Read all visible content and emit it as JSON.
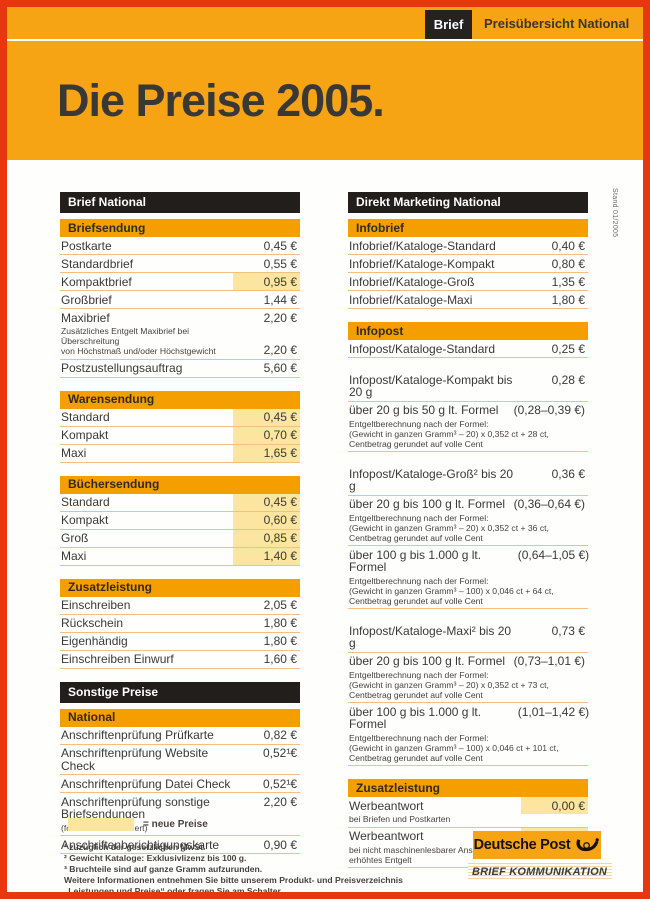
{
  "header": {
    "tab": "Brief",
    "subtitle": "Preisübersicht National",
    "title": "Die Preise 2005.",
    "stand_note": "Stand 01/2005"
  },
  "colors": {
    "frame_red": "#e8370e",
    "orange": "#f7a414",
    "section_band_orange": "#f59e00",
    "black_band": "#211e1b",
    "new_price_highlight": "#fce59e",
    "text_dark": "#3a3936",
    "row_separator": "#eec17e"
  },
  "columns": [
    {
      "sections": [
        {
          "type": "band",
          "label": "Brief National"
        },
        {
          "type": "table",
          "header": "Briefsendung",
          "rows": [
            {
              "label": "Postkarte",
              "price": "0,45 €"
            },
            {
              "label": "Standardbrief",
              "price": "0,55 €"
            },
            {
              "label": "Kompaktbrief",
              "price": "0,95 €",
              "highlight": true
            },
            {
              "label": "Großbrief",
              "price": "1,44 €"
            },
            {
              "label": "Maxibrief",
              "price": "2,20 €"
            },
            {
              "joined": true,
              "note_lines": [
                "Zusätzliches Entgelt Maxibrief bei Überschreitung",
                "von Höchstmaß und/oder Höchstgewicht"
              ],
              "price": "2,20 €"
            },
            {
              "label": "Postzustellungsauftrag",
              "price": "5,60 €"
            }
          ]
        },
        {
          "type": "table",
          "header": "Warensendung",
          "rows": [
            {
              "label": "Standard",
              "price": "0,45 €",
              "highlight": true
            },
            {
              "label": "Kompakt",
              "price": "0,70 €",
              "highlight": true
            },
            {
              "label": "Maxi",
              "price": "1,65 €",
              "highlight": true
            }
          ]
        },
        {
          "type": "table",
          "header": "Büchersendung",
          "rows": [
            {
              "label": "Standard",
              "price": "0,45 €",
              "highlight": true
            },
            {
              "label": "Kompakt",
              "price": "0,60 €",
              "highlight": true
            },
            {
              "label": "Groß",
              "price": "0,85 €",
              "highlight": true
            },
            {
              "label": "Maxi",
              "price": "1,40 €",
              "highlight": true
            }
          ]
        },
        {
          "type": "table",
          "header": "Zusatzleistung",
          "rows": [
            {
              "label": "Einschreiben",
              "price": "2,05 €"
            },
            {
              "label": "Rückschein",
              "price": "1,80 €"
            },
            {
              "label": "Eigenhändig",
              "price": "1,80 €"
            },
            {
              "label": "Einschreiben Einwurf",
              "price": "1,60 €"
            }
          ]
        },
        {
          "type": "band",
          "label": "Sonstige Preise"
        },
        {
          "type": "table",
          "header": "National",
          "rows": [
            {
              "label": "Anschriftenprüfung Prüfkarte",
              "price": "0,82 €"
            },
            {
              "label": "Anschriftenprüfung Website Check",
              "price": "0,52¹€"
            },
            {
              "label": "Anschriftenprüfung Datei Check",
              "price": "0,52¹€"
            },
            {
              "label": "Anschriftenprüfung sonstige Briefsendungen",
              "note_lines": [
                "(formlos/unstrukturiert)"
              ],
              "price": "2,20 €"
            },
            {
              "label": "Anschriftenberichtigungskarte",
              "price": "0,90 €"
            }
          ]
        }
      ]
    },
    {
      "sections": [
        {
          "type": "band",
          "label": "Direkt Marketing National"
        },
        {
          "type": "table",
          "header": "Infobrief",
          "rows": [
            {
              "label": "Infobrief/Kataloge-Standard",
              "price": "0,40 €"
            },
            {
              "label": "Infobrief/Kataloge-Kompakt",
              "price": "0,80 €"
            },
            {
              "label": "Infobrief/Kataloge-Groß",
              "price": "1,35 €"
            },
            {
              "label": "Infobrief/Kataloge-Maxi",
              "price": "1,80 €"
            }
          ]
        },
        {
          "type": "table",
          "header": "Infopost",
          "rows": [
            {
              "label": "Infopost/Kataloge-Standard",
              "price": "0,25 €"
            }
          ]
        },
        {
          "type": "table",
          "rows": [
            {
              "label": "Infopost/Kataloge-Kompakt bis 20 g",
              "price": "0,28 €"
            },
            {
              "label": "über 20 g bis 50 g lt. Formel",
              "price": "(0,28–0,39 €)",
              "note_lines": [
                "Entgeltberechnung nach der Formel:",
                "(Gewicht in ganzen Gramm³ – 20) x 0,352 ct + 28 ct,",
                "Centbetrag gerundet auf volle Cent"
              ]
            }
          ]
        },
        {
          "type": "table",
          "rows": [
            {
              "label": "Infopost/Kataloge-Groß² bis 20 g",
              "price": "0,36 €"
            },
            {
              "label": "über 20 g bis 100 g lt. Formel",
              "price": "(0,36–0,64 €)",
              "note_lines": [
                "Entgeltberechnung nach der Formel:",
                "(Gewicht in ganzen Gramm³ – 20) x 0,352 ct + 36 ct,",
                "Centbetrag gerundet auf volle Cent"
              ]
            },
            {
              "label": "über 100 g bis 1.000 g lt. Formel",
              "price": "(0,64–1,05 €)",
              "note_lines": [
                "Entgeltberechnung nach der Formel:",
                "(Gewicht in ganzen Gramm³ – 100) x 0,046 ct + 64 ct,",
                "Centbetrag gerundet auf volle Cent"
              ]
            }
          ]
        },
        {
          "type": "table",
          "rows": [
            {
              "label": "Infopost/Kataloge-Maxi² bis 20 g",
              "price": "0,73 €"
            },
            {
              "label": "über 20 g bis 100 g lt. Formel",
              "price": "(0,73–1,01 €)",
              "note_lines": [
                "Entgeltberechnung nach der Formel:",
                "(Gewicht in ganzen Gramm³ – 20) x 0,352 ct + 73 ct,",
                "Centbetrag gerundet auf volle Cent"
              ]
            },
            {
              "label": "über 100 g bis 1.000 g lt. Formel",
              "price": "(1,01–1,42 €)",
              "note_lines": [
                "Entgeltberechnung nach der Formel:",
                "(Gewicht in ganzen Gramm³ – 100) x 0,046 ct + 101 ct,",
                "Centbetrag gerundet auf volle Cent"
              ]
            }
          ]
        },
        {
          "type": "table",
          "header": "Zusatzleistung",
          "rows": [
            {
              "label": "Werbeantwort",
              "price": "0,00 €",
              "highlight": true,
              "note_lines": [
                "bei Briefen und Postkarten"
              ]
            },
            {
              "label": "Werbeantwort",
              "price": "0,25 €",
              "highlight": true,
              "note_lines": [
                "bei nicht maschinenlesbarer Anschrift",
                "erhöhtes Entgelt"
              ]
            }
          ]
        }
      ]
    }
  ],
  "footer": {
    "legend": "= neue Preise",
    "footnotes": [
      "¹ zuzüglich der gesetzlichen MwSt.",
      "² Gewicht Kataloge: Exklusivlizenz bis 100 g.",
      "³ Bruchteile sind auf ganze Gramm aufzurunden.",
      "Weitere Informationen entnehmen Sie bitte unserem Produkt- und Preisverzeichnis",
      "„Leistungen und Preise“ oder fragen Sie am Schalter."
    ],
    "logo_text": "Deutsche Post",
    "banner": "BRIEF KOMMUNIKATION"
  }
}
